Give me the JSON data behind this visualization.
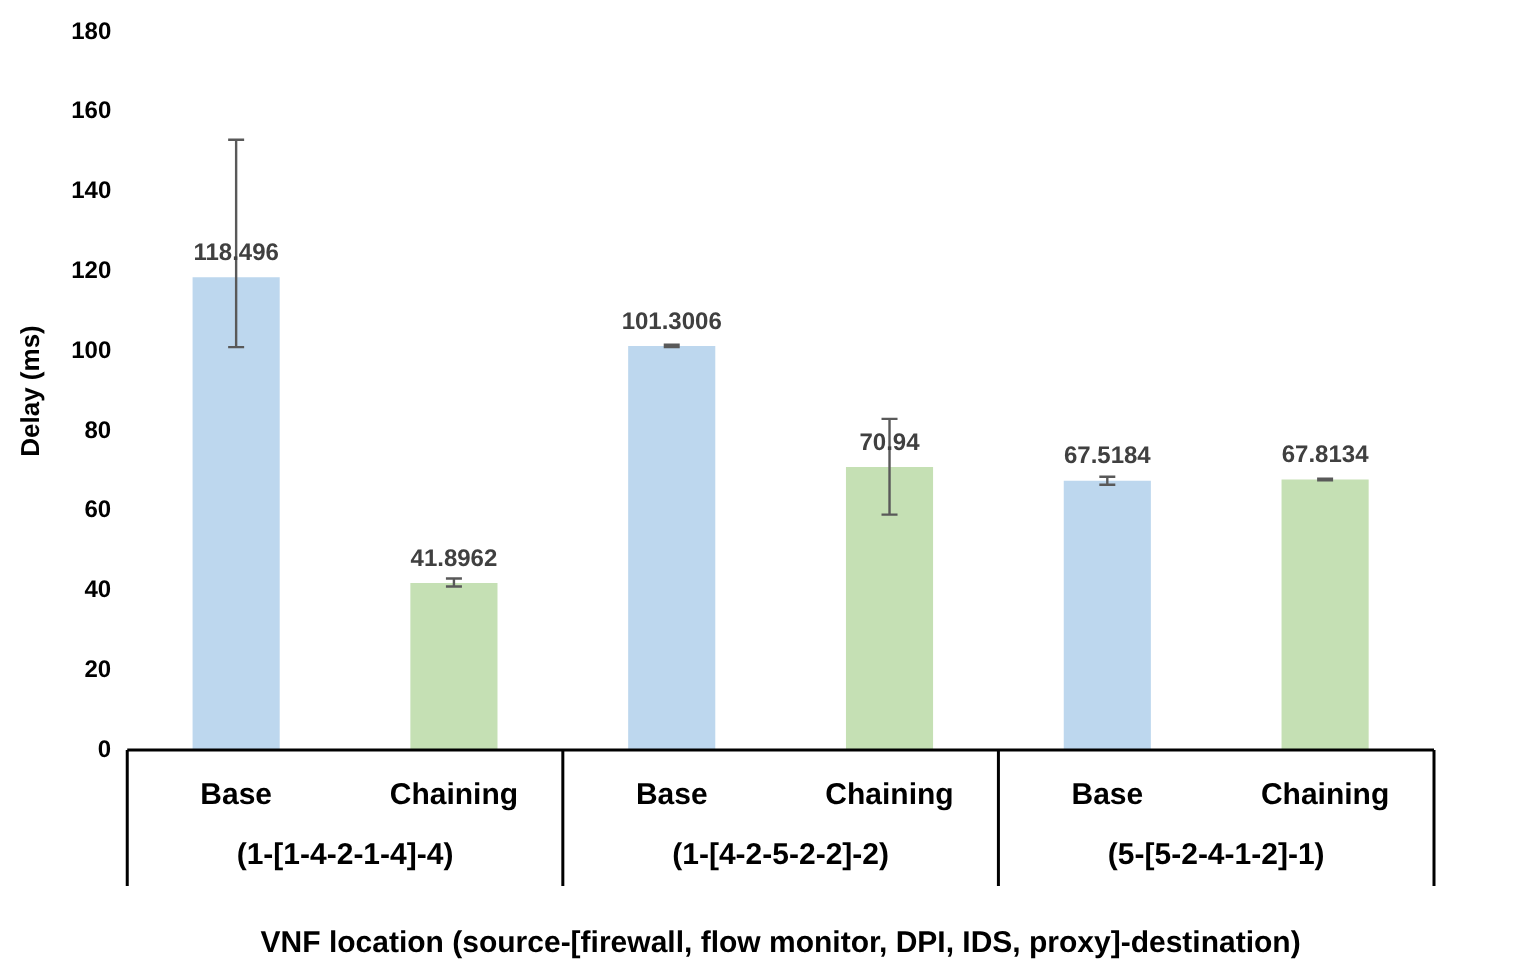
{
  "chart_data": {
    "type": "bar",
    "xlabel": "VNF location (source-[firewall, flow monitor, DPI, IDS, proxy]-destination)",
    "ylabel": "Delay (ms)",
    "categories": [
      "Base",
      "Chaining",
      "Base",
      "Chaining",
      "Base",
      "Chaining"
    ],
    "values": [
      118.496,
      41.8962,
      101.3006,
      70.94,
      67.5184,
      67.8134
    ],
    "colors": [
      "#bdd7ee",
      "#c5e0b4",
      "#bdd7ee",
      "#c5e0b4",
      "#bdd7ee",
      "#c5e0b4"
    ],
    "errors": [
      [
        101,
        153
      ],
      [
        41,
        43
      ],
      [
        101,
        101.6
      ],
      [
        59,
        83
      ],
      [
        66.5,
        68.5
      ],
      [
        67.6,
        68
      ]
    ],
    "data_labels": true,
    "annotations": [
      "(1-[1-4-2-1-4]-4)",
      "(1-[4-2-5-2-2]-2)",
      "(5-[5-2-4-1-2]-1)"
    ],
    "ylim": [
      0,
      180
    ],
    "yticks": [
      0,
      20,
      40,
      60,
      80,
      100,
      120,
      140,
      160,
      180
    ],
    "grid": false,
    "legend": false
  }
}
